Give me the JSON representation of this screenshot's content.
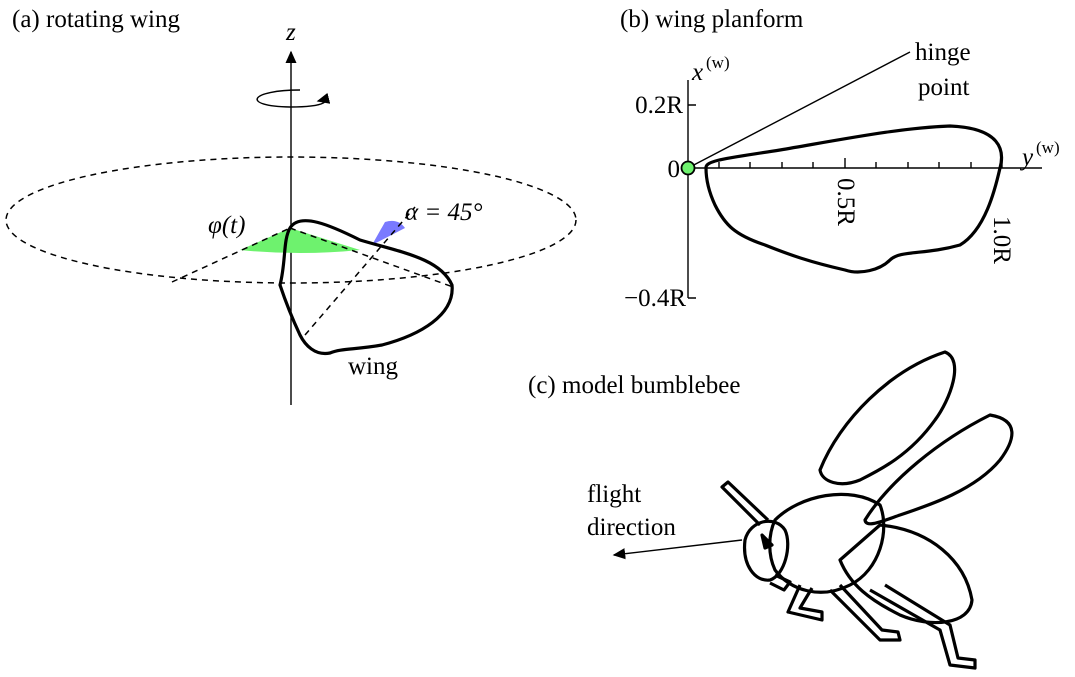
{
  "panels": {
    "a": {
      "label": "(a) rotating wing",
      "axis": "z",
      "stroke_angle": "φ(t)",
      "pitch_angle": "α = 45°",
      "wing": "wing"
    },
    "b": {
      "label": "(b) wing planform",
      "hinge": [
        "hinge",
        "point"
      ],
      "x_axis": {
        "symbol": "x",
        "superscript": "(w)"
      },
      "y_axis": {
        "symbol": "y",
        "superscript": "(w)"
      },
      "vertical_ticks": [
        "0.2R",
        "0",
        "−0.4R"
      ],
      "horizontal_ticks": [
        "0.5R",
        "1.0R"
      ]
    },
    "c": {
      "label": "(c) model bumblebee",
      "arrow": [
        "flight",
        "direction"
      ]
    }
  }
}
